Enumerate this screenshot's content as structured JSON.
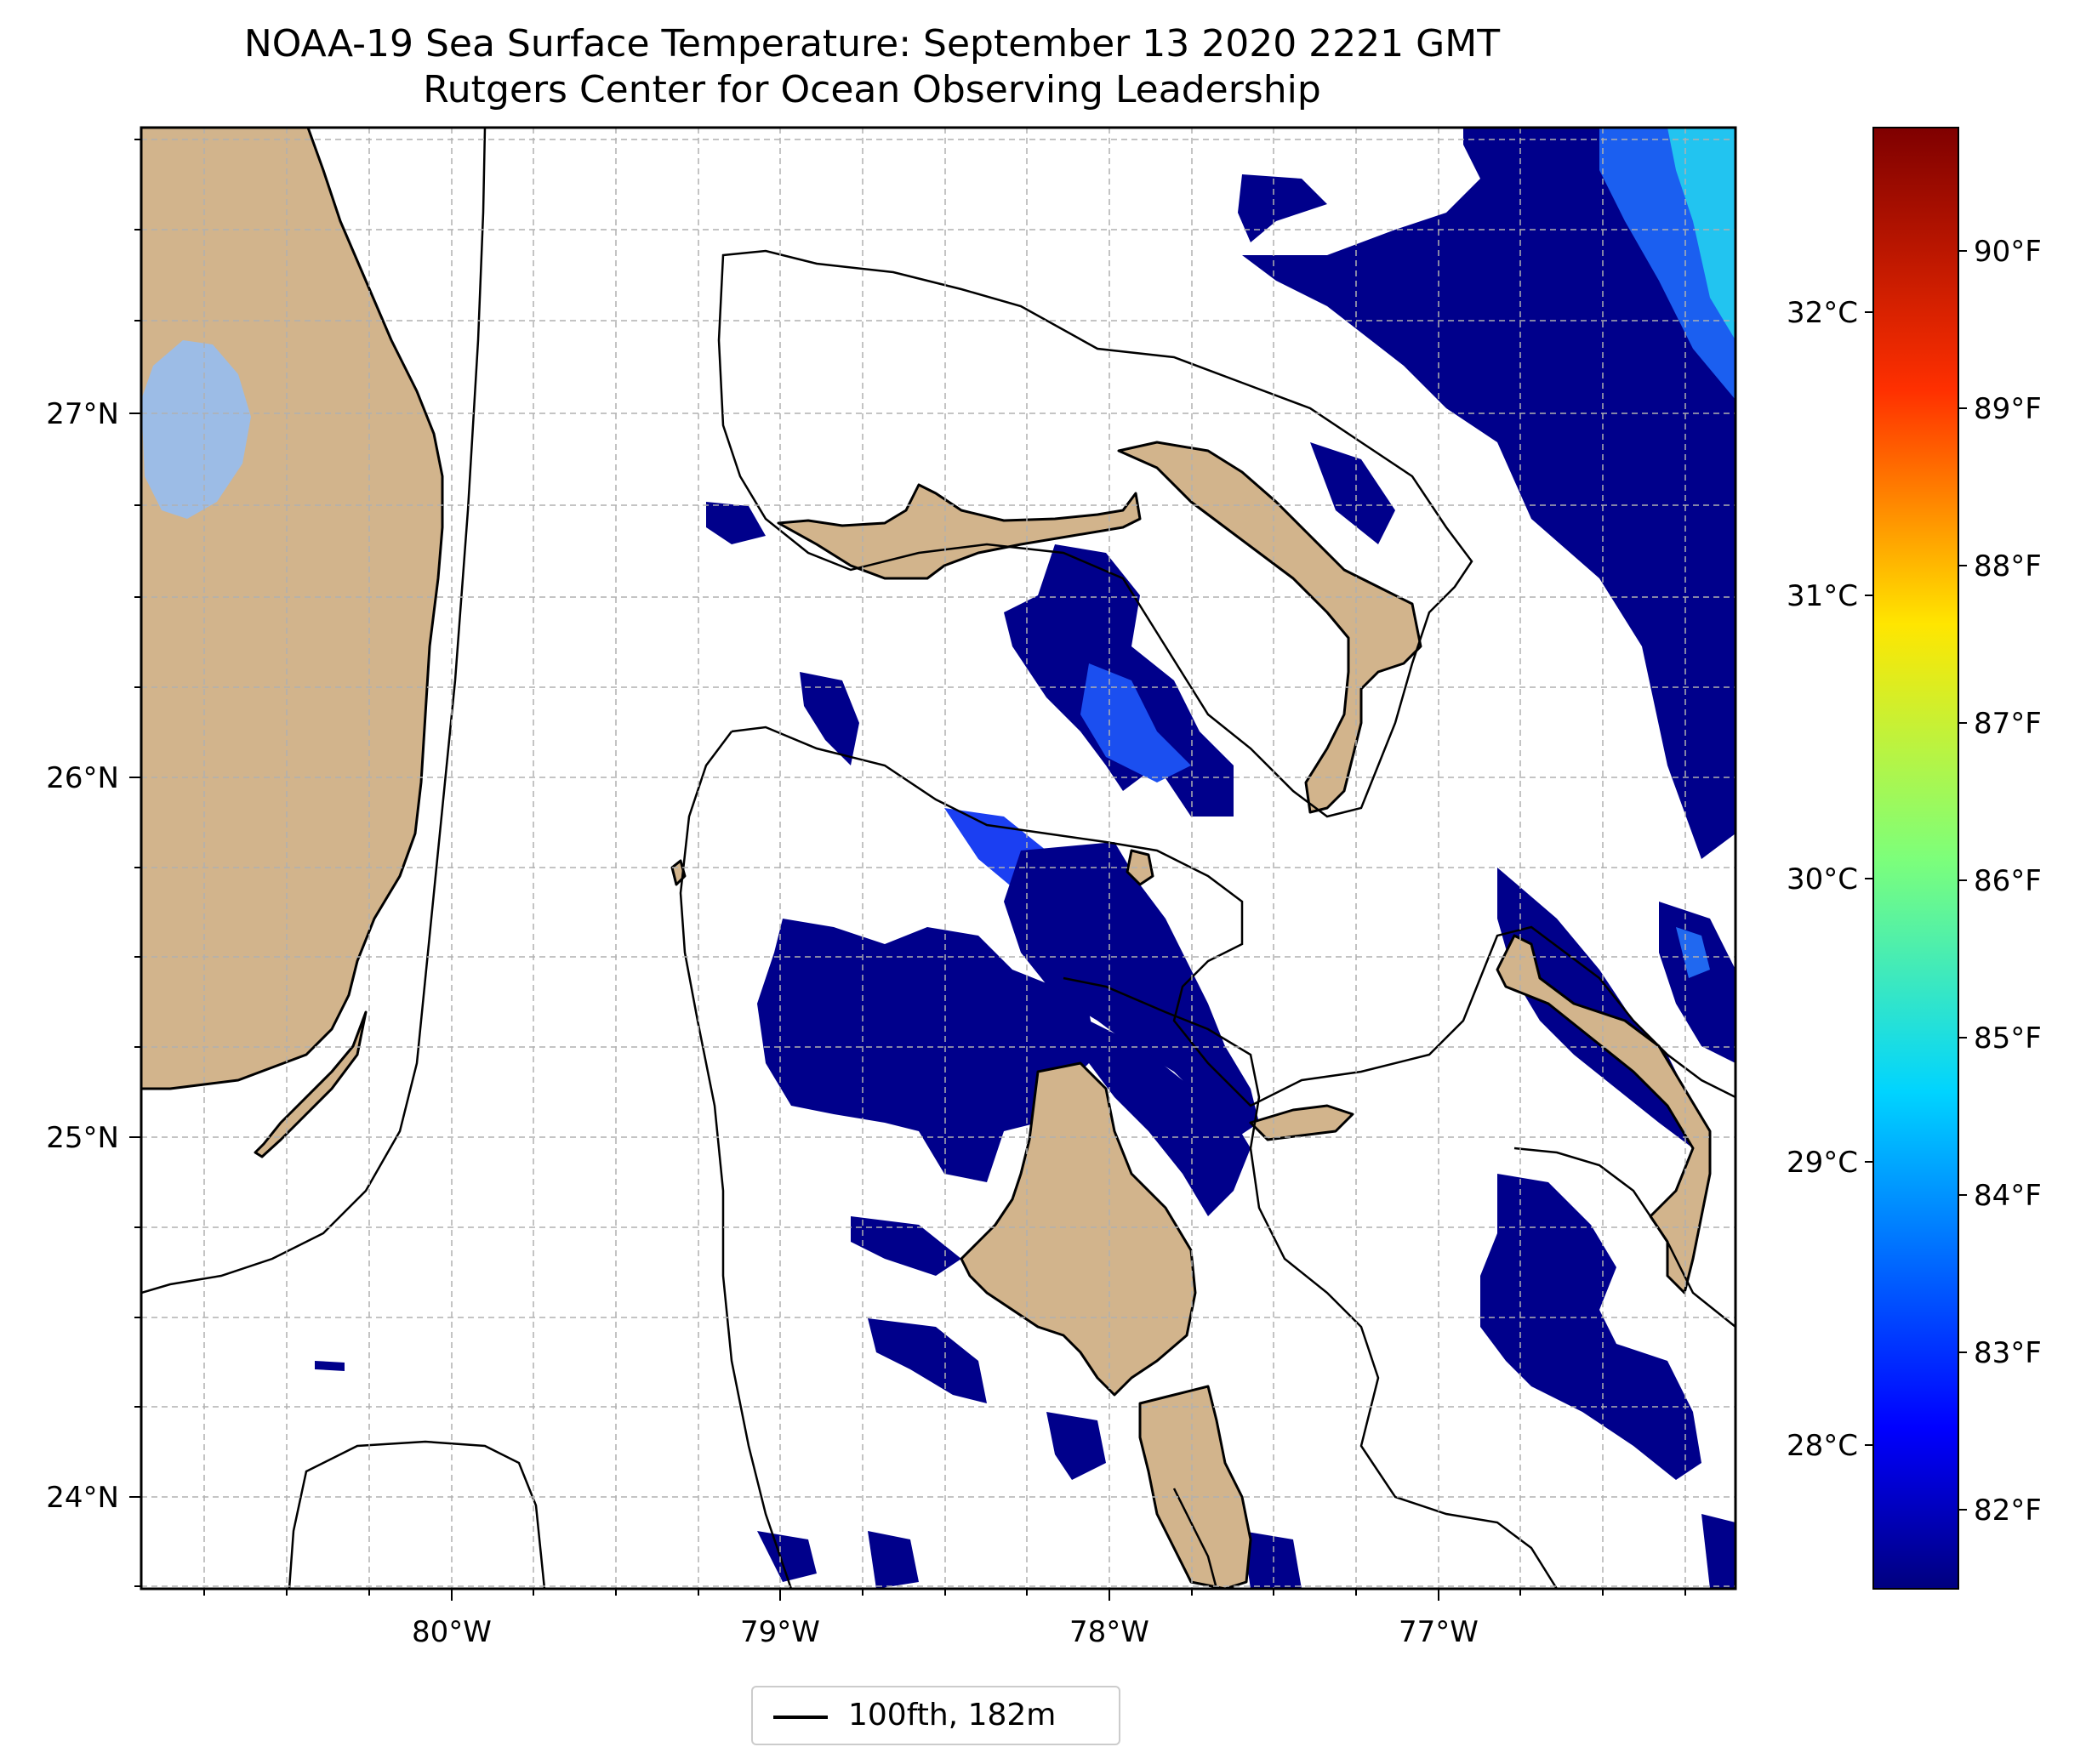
{
  "title": {
    "line1": "NOAA-19 Sea Surface Temperature: September 13 2020 2221 GMT",
    "line2": "Rutgers Center for Ocean Observing Leadership"
  },
  "axes": {
    "lon_ticks": [
      "80°W",
      "79°W",
      "78°W",
      "77°W"
    ],
    "lat_ticks": [
      "27°N",
      "26°N",
      "25°N",
      "24°N"
    ]
  },
  "colorbar": {
    "celsius_ticks": [
      "32°C",
      "31°C",
      "30°C",
      "29°C",
      "28°C"
    ],
    "fahrenheit_ticks": [
      "90°F",
      "89°F",
      "88°F",
      "87°F",
      "86°F",
      "85°F",
      "84°F",
      "83°F",
      "82°F"
    ],
    "colormap": [
      "#00007f",
      "#0000ff",
      "#0080ff",
      "#00e5f7",
      "#7dff7a",
      "#f7f700",
      "#ff8000",
      "#ff0000",
      "#7f0000"
    ]
  },
  "legend": {
    "label": "100fth, 182m"
  },
  "colors": {
    "land": "#d2b48c",
    "lake": "#9cbce6",
    "sst_low": "#00008b",
    "sst_mid": "#1b3ff2",
    "sst_high": "#22c4f0"
  }
}
